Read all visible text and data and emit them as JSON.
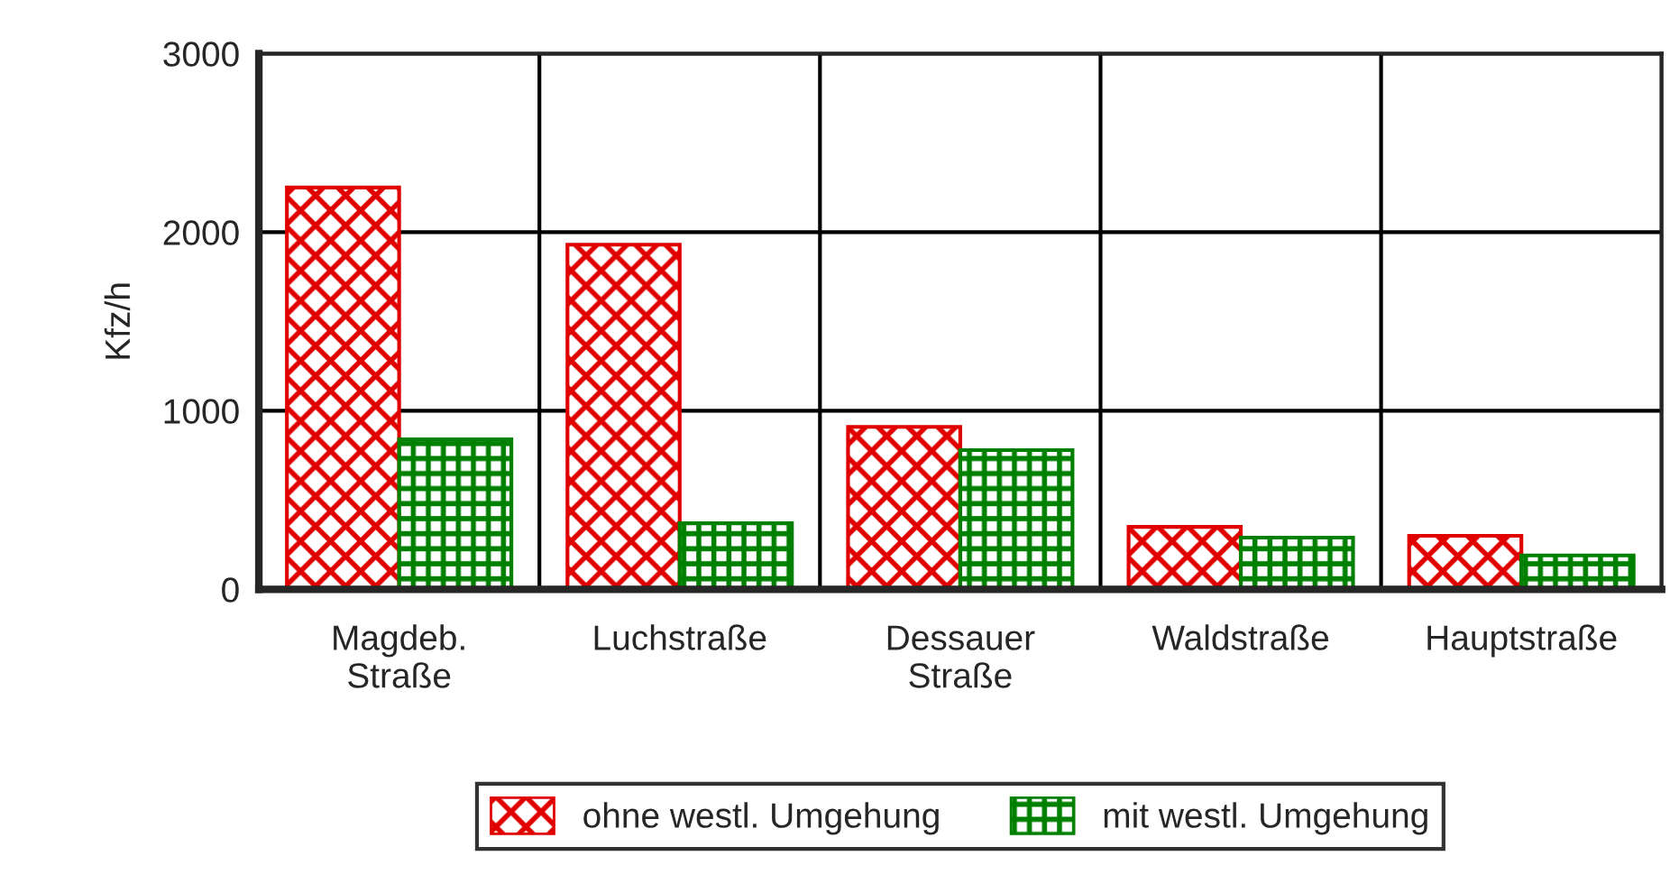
{
  "chart_data": {
    "type": "bar",
    "ylabel": "Kfz/h",
    "categories": [
      "Magdeb.\nStraße",
      "Luchstraße",
      "Dessauer\nStraße",
      "Waldstraße",
      "Hauptstraße"
    ],
    "series": [
      {
        "name": "ohne westl. Umgehung",
        "color": "#e00000",
        "values": [
          2250,
          1930,
          910,
          350,
          300
        ]
      },
      {
        "name": "mit westl. Umgehung",
        "color": "#008000",
        "values": [
          840,
          370,
          780,
          290,
          190
        ]
      }
    ],
    "ylim": [
      0,
      3000
    ],
    "yticks": [
      0,
      1000,
      2000,
      3000
    ],
    "grid": true,
    "legend": "bottom"
  }
}
